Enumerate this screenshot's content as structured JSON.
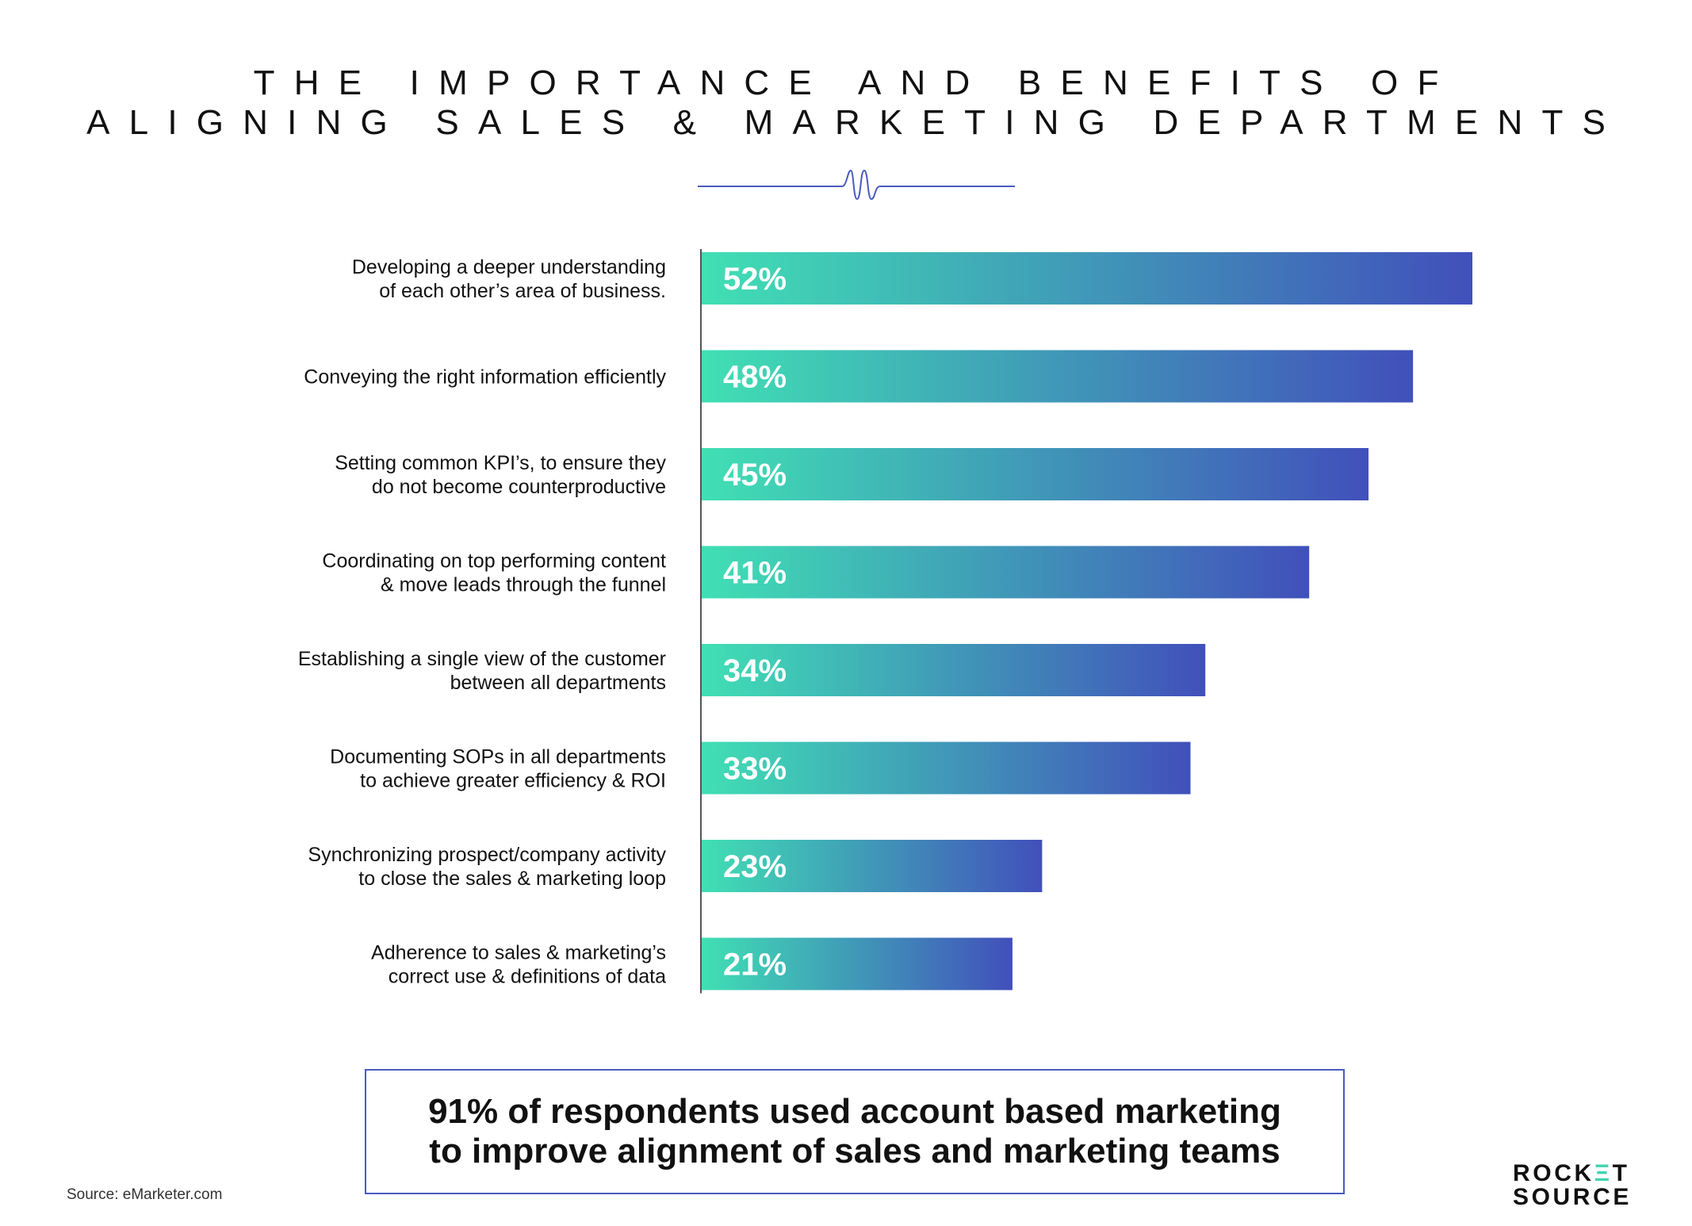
{
  "title": {
    "line1": "THE IMPORTANCE AND BENEFITS OF",
    "line2": "ALIGNING SALES & MARKETING DEPARTMENTS"
  },
  "colors": {
    "bar_start": "#40e0b4",
    "bar_end": "#4150bb",
    "axis": "#555555",
    "callout_border": "#4a5bbf",
    "divider": "#4a5bbf",
    "logo_accent": "#3fd4b0"
  },
  "chart_data": {
    "type": "bar",
    "orientation": "horizontal",
    "title": "THE IMPORTANCE AND BENEFITS OF ALIGNING SALES & MARKETING DEPARTMENTS",
    "categories": [
      [
        "Developing a deeper understanding",
        "of each other’s area of business."
      ],
      [
        "Conveying the right information efficiently"
      ],
      [
        "Setting common KPI’s, to ensure they",
        "do not become counterproductive"
      ],
      [
        "Coordinating on top performing content",
        "& move leads through the funnel"
      ],
      [
        "Establishing a single view of the customer",
        "between all departments"
      ],
      [
        "Documenting SOPs in all departments",
        "to achieve greater efficiency & ROI"
      ],
      [
        "Synchronizing prospect/company activity",
        "to close the sales & marketing loop"
      ],
      [
        "Adherence to sales & marketing’s",
        "correct use & definitions of data"
      ]
    ],
    "values": [
      52,
      48,
      45,
      41,
      34,
      33,
      23,
      21
    ],
    "value_labels": [
      "52%",
      "48%",
      "45%",
      "41%",
      "34%",
      "33%",
      "23%",
      "21%"
    ],
    "unit": "%",
    "grid": false,
    "legend": "none"
  },
  "callout": {
    "line1": "91% of respondents used account based marketing",
    "line2": "to improve alignment of sales and marketing teams"
  },
  "source": "Source: eMarketer.com",
  "logo": {
    "line1_a": "ROCK",
    "line1_accent": "Ξ",
    "line1_b": "T",
    "line2": "SOURCE"
  }
}
